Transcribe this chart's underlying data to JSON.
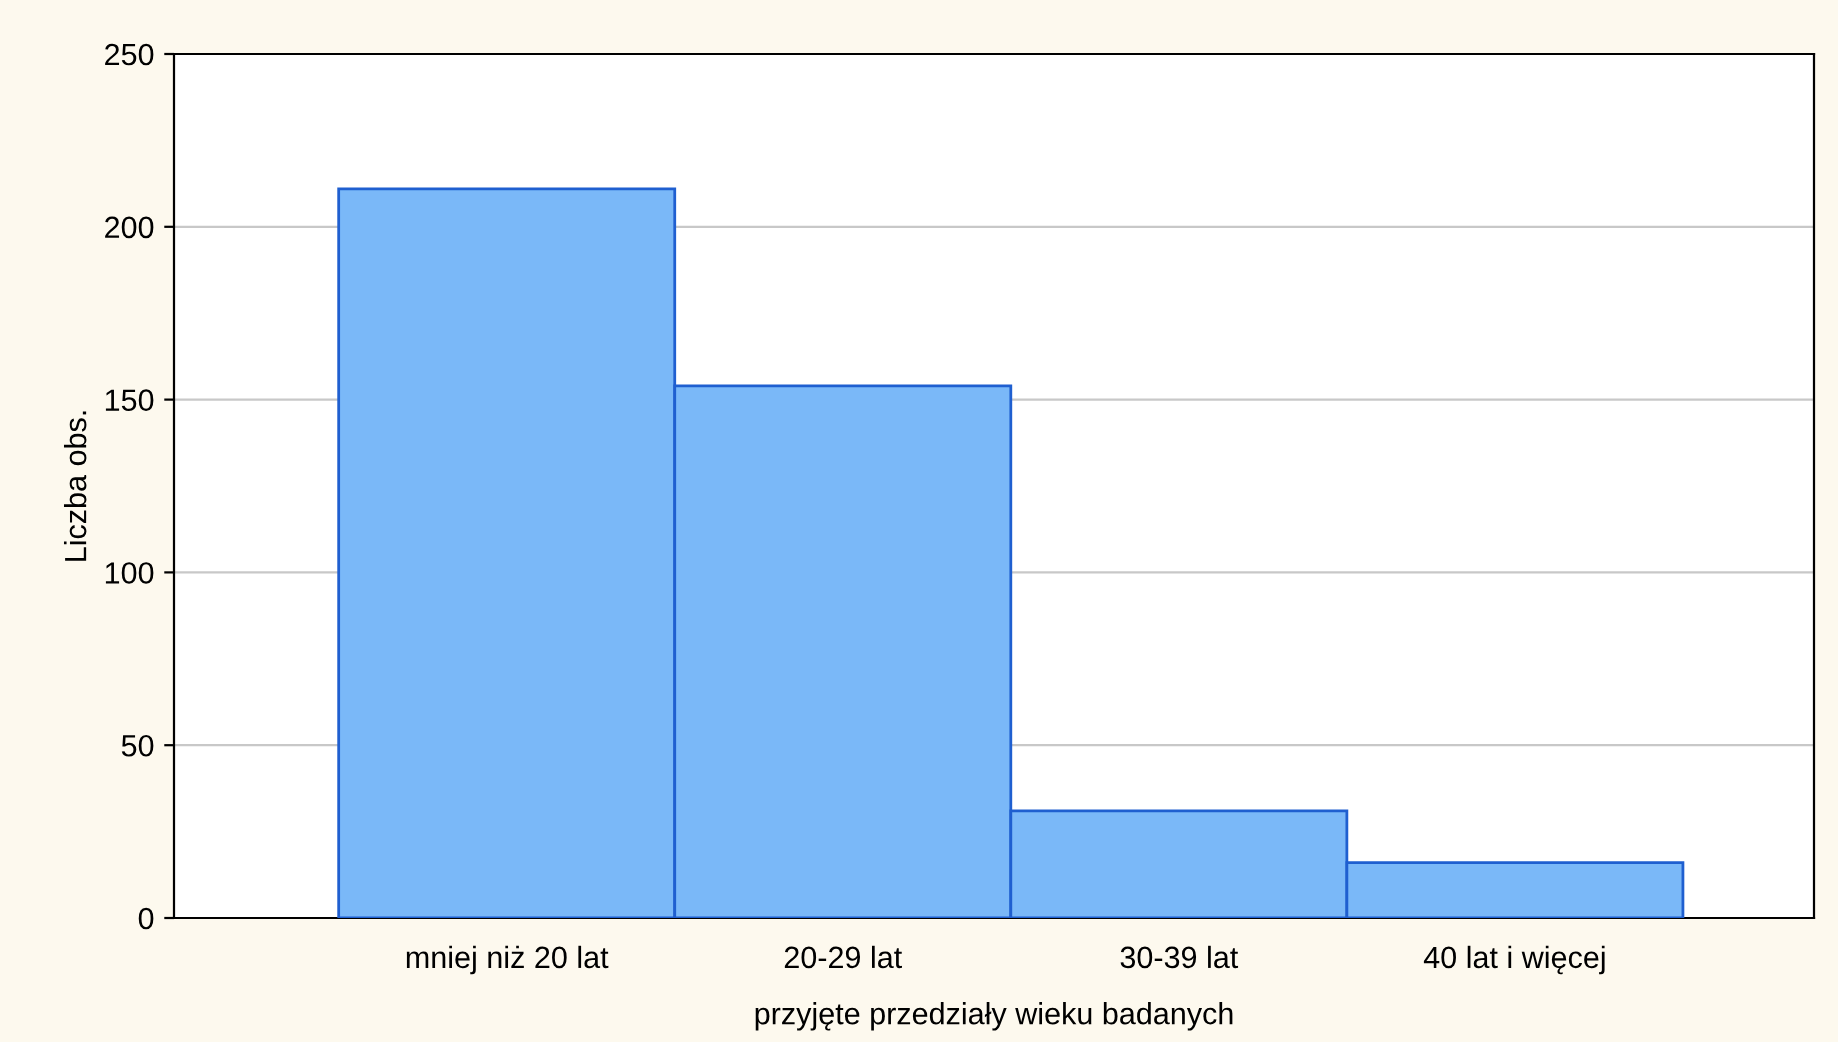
{
  "chart_data": {
    "type": "bar",
    "xlabel": "przyjęte przedziały wieku badanych",
    "ylabel": "Liczba obs.",
    "categories": [
      "mniej niż 20 lat",
      "20-29 lat",
      "30-39 lat",
      "40 lat i więcej"
    ],
    "values": [
      211,
      154,
      31,
      16
    ],
    "color": "#7ab8f8",
    "ylim": [
      0,
      250
    ],
    "yticks": [
      0,
      50,
      100,
      150,
      200,
      250
    ],
    "grid": "y"
  }
}
